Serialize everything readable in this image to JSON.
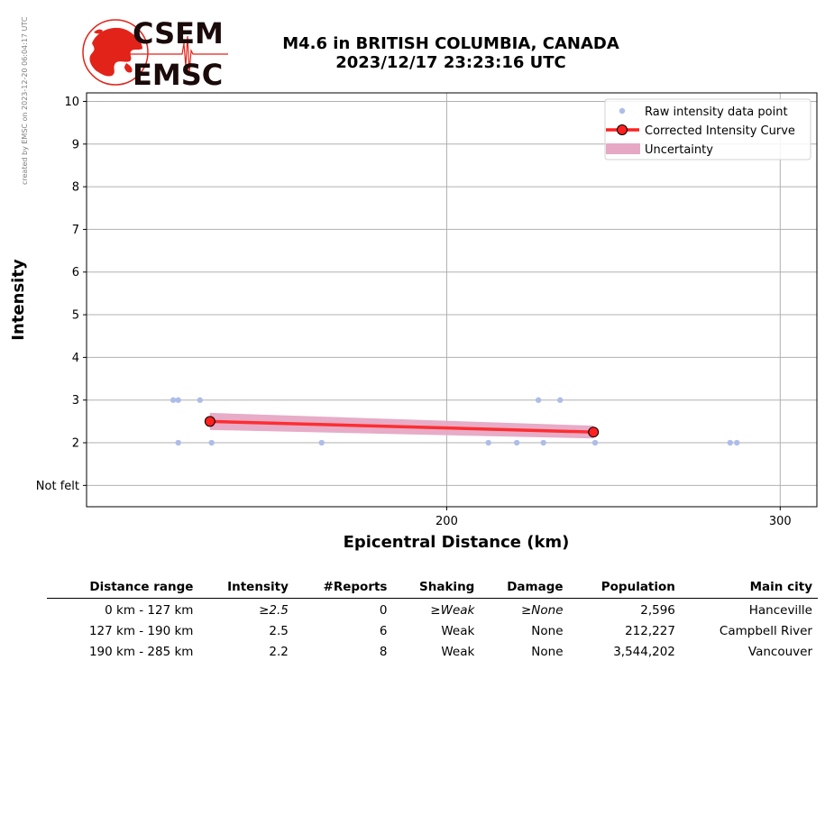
{
  "side_credit": "created by EMSC on 2023-12-20 06:04:17 UTC",
  "logo": {
    "top_text": "CSEM",
    "bottom_text": "EMSC",
    "brand_color": "#e2231a",
    "text_color": "#1a0a0a"
  },
  "title": {
    "line1": "M4.6 in BRITISH COLUMBIA, CANADA",
    "line2": "2023/12/17 23:23:16 UTC"
  },
  "chart_data": {
    "type": "scatter",
    "xlabel": "Epicentral Distance (km)",
    "ylabel": "Intensity",
    "xlim": [
      92,
      311
    ],
    "ylim": [
      0.5,
      10.2
    ],
    "x_ticks": [
      200,
      300
    ],
    "y_ticks": [
      1,
      2,
      3,
      4,
      5,
      6,
      7,
      8,
      9,
      10
    ],
    "y_tick_labels": [
      "Not felt",
      "2",
      "3",
      "4",
      "5",
      "6",
      "7",
      "8",
      "9",
      "10"
    ],
    "grid": true,
    "legend_placement": "top-right",
    "colors": {
      "raw": "#aebde8",
      "curve": "#ff2020",
      "uncertainty": "#e6a8c4",
      "marker_edge": "#000000"
    },
    "series": [
      {
        "name": "Raw intensity data point",
        "kind": "points",
        "x": [
          118,
          119.5,
          126,
          119.5,
          129.5,
          162.5,
          227.5,
          234,
          212.5,
          221,
          229,
          244.5,
          285,
          287
        ],
        "y": [
          3,
          3,
          3,
          2,
          2,
          2,
          3,
          3,
          2,
          2,
          2,
          2,
          2,
          2
        ]
      },
      {
        "name": "Corrected Intensity Curve",
        "kind": "line",
        "x": [
          129,
          244
        ],
        "y": [
          2.5,
          2.25
        ]
      },
      {
        "name": "Uncertainty",
        "kind": "band",
        "x": [
          129,
          244
        ],
        "upper": [
          2.7,
          2.4
        ],
        "lower": [
          2.3,
          2.1
        ]
      }
    ]
  },
  "table": {
    "headers": [
      "Distance range",
      "Intensity",
      "#Reports",
      "Shaking",
      "Damage",
      "Population",
      "Main city"
    ],
    "rows": [
      {
        "range": "0 km -  127 km",
        "intensity": "≥2.5",
        "reports": "0",
        "shaking": "≥Weak",
        "damage": "≥None",
        "population": "2,596",
        "city": "Hanceville"
      },
      {
        "range": "127 km -  190 km",
        "intensity": "2.5",
        "reports": "6",
        "shaking": "Weak",
        "damage": "None",
        "population": "212,227",
        "city": "Campbell River"
      },
      {
        "range": "190 km -  285 km",
        "intensity": "2.2",
        "reports": "8",
        "shaking": "Weak",
        "damage": "None",
        "population": "3,544,202",
        "city": "Vancouver"
      }
    ]
  }
}
